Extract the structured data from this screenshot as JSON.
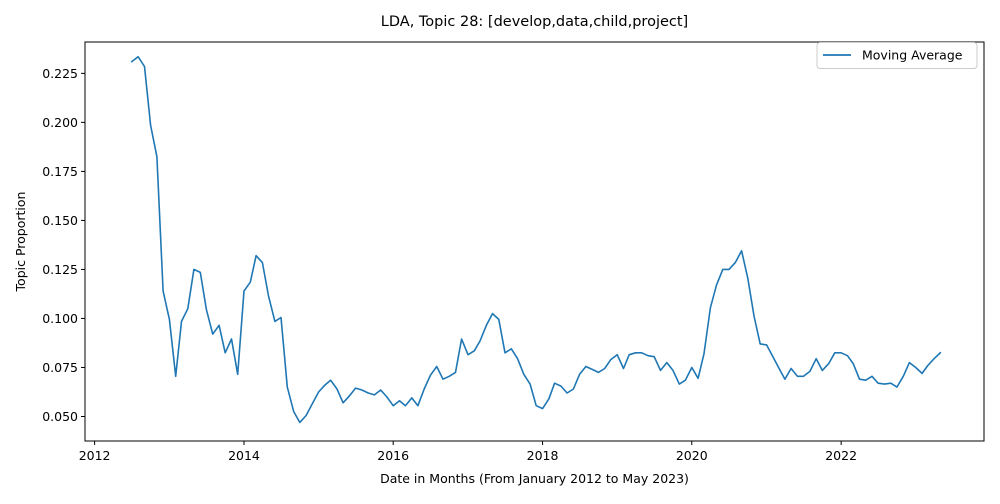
{
  "chart_data": {
    "type": "line",
    "title": "LDA, Topic 28: [develop,data,child,project]",
    "xlabel": "Date in Months (From January 2012 to May 2023)",
    "ylabel": "Topic Proportion",
    "xlim": [
      "2011-11-15",
      "2023-12-01"
    ],
    "ylim": [
      0.0375,
      0.241
    ],
    "x_ticks": [
      "2012",
      "2014",
      "2016",
      "2018",
      "2020",
      "2022"
    ],
    "x_tick_dates": [
      "2012-01-01",
      "2014-01-01",
      "2016-01-01",
      "2018-01-01",
      "2020-01-01",
      "2022-01-01"
    ],
    "y_ticks": [
      "0.050",
      "0.075",
      "0.100",
      "0.125",
      "0.150",
      "0.175",
      "0.200",
      "0.225"
    ],
    "y_tick_values": [
      0.05,
      0.075,
      0.1,
      0.125,
      0.15,
      0.175,
      0.2,
      0.225
    ],
    "grid": false,
    "legend_position": "top-right",
    "series": [
      {
        "name": "Moving Average",
        "color": "#1f77b4",
        "x": [
          "2012-07",
          "2012-08",
          "2012-09",
          "2012-10",
          "2012-11",
          "2012-12",
          "2013-01",
          "2013-02",
          "2013-03",
          "2013-04",
          "2013-05",
          "2013-06",
          "2013-07",
          "2013-08",
          "2013-09",
          "2013-10",
          "2013-11",
          "2013-12",
          "2014-01",
          "2014-02",
          "2014-03",
          "2014-04",
          "2014-05",
          "2014-06",
          "2014-07",
          "2014-08",
          "2014-09",
          "2014-10",
          "2014-11",
          "2014-12",
          "2015-01",
          "2015-02",
          "2015-03",
          "2015-04",
          "2015-05",
          "2015-06",
          "2015-07",
          "2015-08",
          "2015-09",
          "2015-10",
          "2015-11",
          "2015-12",
          "2016-01",
          "2016-02",
          "2016-03",
          "2016-04",
          "2016-05",
          "2016-06",
          "2016-07",
          "2016-08",
          "2016-09",
          "2016-10",
          "2016-11",
          "2016-12",
          "2017-01",
          "2017-02",
          "2017-03",
          "2017-04",
          "2017-05",
          "2017-06",
          "2017-07",
          "2017-08",
          "2017-09",
          "2017-10",
          "2017-11",
          "2017-12",
          "2018-01",
          "2018-02",
          "2018-03",
          "2018-04",
          "2018-05",
          "2018-06",
          "2018-07",
          "2018-08",
          "2018-09",
          "2018-10",
          "2018-11",
          "2018-12",
          "2019-01",
          "2019-02",
          "2019-03",
          "2019-04",
          "2019-05",
          "2019-06",
          "2019-07",
          "2019-08",
          "2019-09",
          "2019-10",
          "2019-11",
          "2019-12",
          "2020-01",
          "2020-02",
          "2020-03",
          "2020-04",
          "2020-05",
          "2020-06",
          "2020-07",
          "2020-08",
          "2020-09",
          "2020-10",
          "2020-11",
          "2020-12",
          "2021-01",
          "2021-02",
          "2021-03",
          "2021-04",
          "2021-05",
          "2021-06",
          "2021-07",
          "2021-08",
          "2021-09",
          "2021-10",
          "2021-11",
          "2021-12",
          "2022-01",
          "2022-02",
          "2022-03",
          "2022-04",
          "2022-05",
          "2022-06",
          "2022-07",
          "2022-08",
          "2022-09",
          "2022-10",
          "2022-11",
          "2022-12",
          "2023-01",
          "2023-02",
          "2023-03",
          "2023-04",
          "2023-05"
        ],
        "y": [
          0.231,
          0.2335,
          0.2285,
          0.1985,
          0.1825,
          0.114,
          0.0995,
          0.0705,
          0.0985,
          0.105,
          0.125,
          0.1235,
          0.1045,
          0.092,
          0.0965,
          0.0825,
          0.0895,
          0.0715,
          0.114,
          0.1185,
          0.132,
          0.1285,
          0.1115,
          0.0985,
          0.1005,
          0.065,
          0.0525,
          0.047,
          0.0505,
          0.0565,
          0.0625,
          0.066,
          0.0685,
          0.064,
          0.057,
          0.0605,
          0.0645,
          0.0635,
          0.062,
          0.061,
          0.0635,
          0.06,
          0.0555,
          0.058,
          0.0555,
          0.0595,
          0.0555,
          0.064,
          0.071,
          0.0755,
          0.069,
          0.0705,
          0.0725,
          0.0895,
          0.0815,
          0.0835,
          0.0885,
          0.0965,
          0.1025,
          0.0995,
          0.0825,
          0.0845,
          0.0795,
          0.0715,
          0.0665,
          0.0555,
          0.054,
          0.059,
          0.067,
          0.0655,
          0.062,
          0.064,
          0.0715,
          0.0755,
          0.074,
          0.0725,
          0.0745,
          0.079,
          0.0815,
          0.0745,
          0.0815,
          0.0825,
          0.0825,
          0.081,
          0.0805,
          0.0735,
          0.0775,
          0.0735,
          0.0665,
          0.0685,
          0.075,
          0.0695,
          0.082,
          0.1055,
          0.117,
          0.125,
          0.125,
          0.1285,
          0.1345,
          0.1205,
          0.101,
          0.087,
          0.0865,
          0.0805,
          0.075,
          0.069,
          0.0745,
          0.0705,
          0.0705,
          0.073,
          0.0795,
          0.0735,
          0.077,
          0.0825,
          0.0825,
          0.081,
          0.077,
          0.069,
          0.0685,
          0.0705,
          0.067,
          0.0665,
          0.067,
          0.065,
          0.0705,
          0.0775,
          0.075,
          0.072,
          0.076,
          0.0795,
          0.0825
        ]
      }
    ]
  }
}
